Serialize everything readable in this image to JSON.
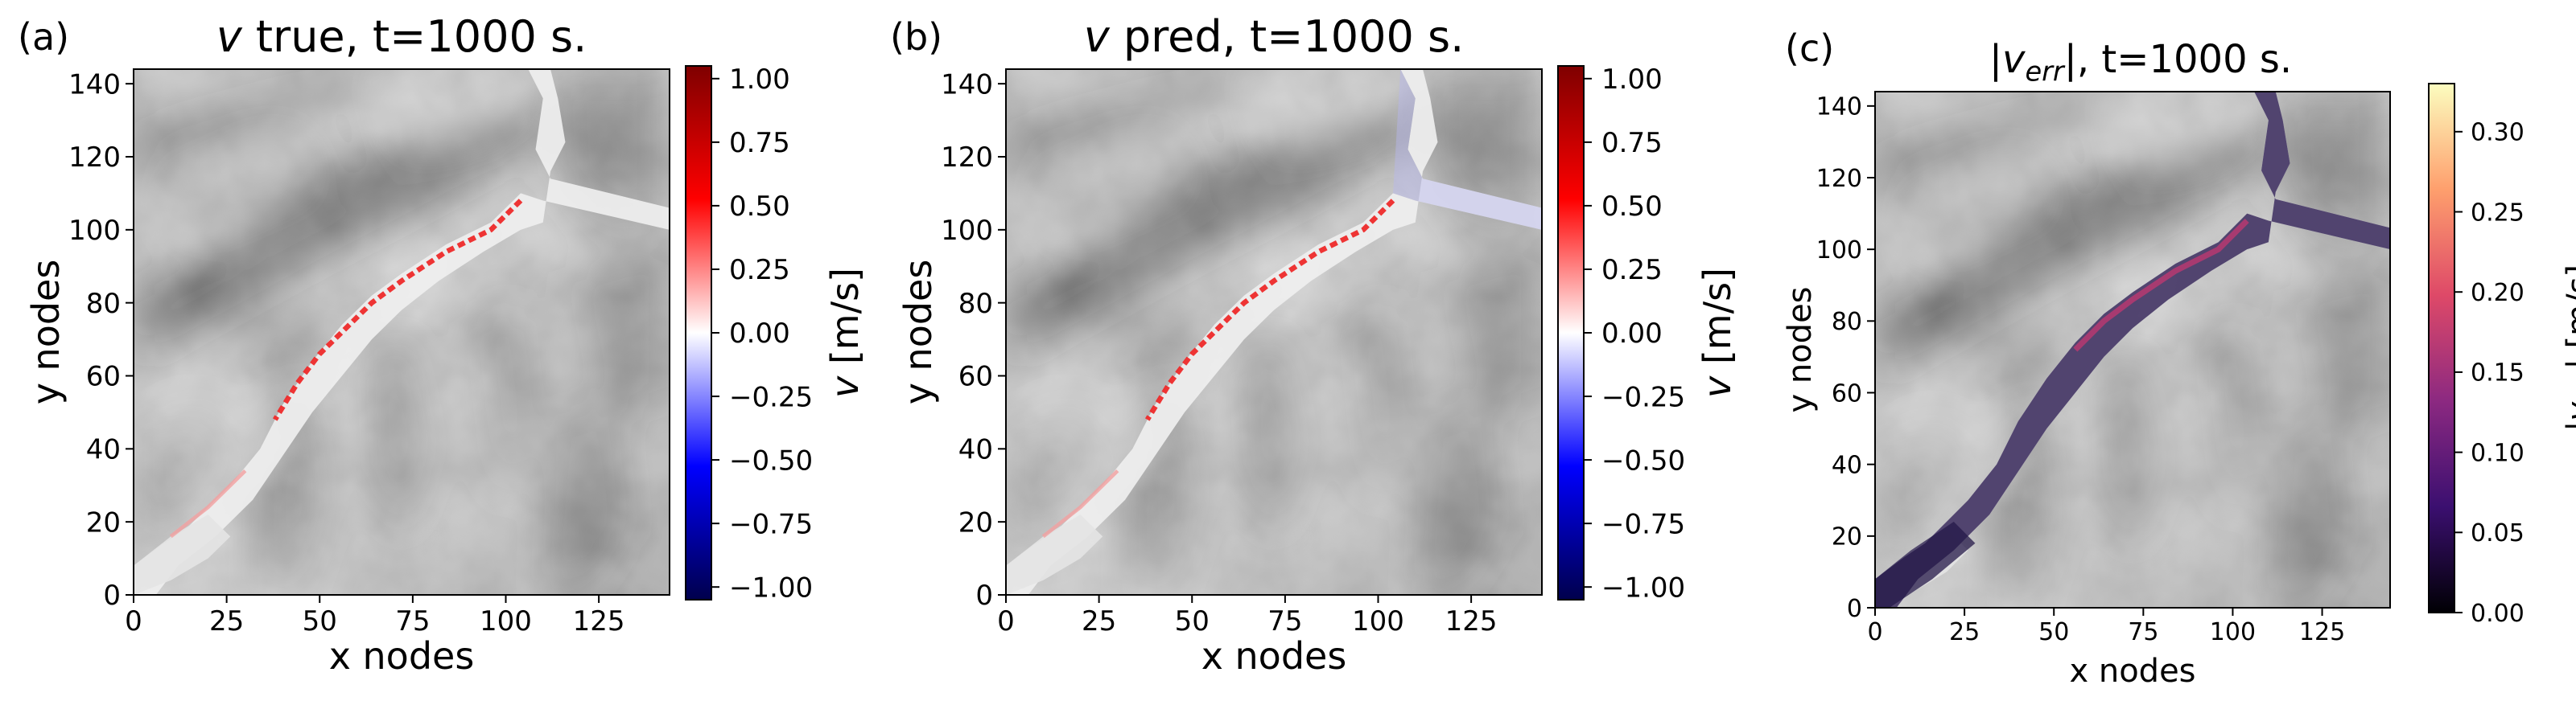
{
  "chart_data": [
    {
      "type": "heatmap",
      "panel_label": "(a)",
      "title_var": "v",
      "title_rest": " true, t=1000 s.",
      "xlabel": "x nodes",
      "ylabel": "y nodes",
      "xlim": [
        0,
        144
      ],
      "ylim": [
        0,
        144
      ],
      "xticks": [
        0,
        25,
        50,
        75,
        100,
        125
      ],
      "yticks": [
        0,
        20,
        40,
        60,
        80,
        100,
        120,
        140
      ],
      "colorbar": {
        "label": "v [m/s]",
        "colormap": "seismic",
        "range": [
          -1.05,
          1.05
        ],
        "ticks": [
          1.0,
          0.75,
          0.5,
          0.25,
          0.0,
          -0.25,
          -0.5,
          -0.75,
          -1.0
        ],
        "tick_labels": [
          "1.00",
          "0.75",
          "0.50",
          "0.25",
          "0.00",
          "−0.25",
          "−0.50",
          "−0.75",
          "−1.00"
        ]
      }
    },
    {
      "type": "heatmap",
      "panel_label": "(b)",
      "title_var": "v",
      "title_rest": " pred, t=1000 s.",
      "xlabel": "x nodes",
      "ylabel": "y nodes",
      "xlim": [
        0,
        144
      ],
      "ylim": [
        0,
        144
      ],
      "xticks": [
        0,
        25,
        50,
        75,
        100,
        125
      ],
      "yticks": [
        0,
        20,
        40,
        60,
        80,
        100,
        120,
        140
      ],
      "colorbar": {
        "label": "v [m/s]",
        "colormap": "seismic",
        "range": [
          -1.05,
          1.05
        ],
        "ticks": [
          1.0,
          0.75,
          0.5,
          0.25,
          0.0,
          -0.25,
          -0.5,
          -0.75,
          -1.0
        ],
        "tick_labels": [
          "1.00",
          "0.75",
          "0.50",
          "0.25",
          "0.00",
          "−0.25",
          "−0.50",
          "−0.75",
          "−1.00"
        ]
      }
    },
    {
      "type": "heatmap",
      "panel_label": "(c)",
      "title_var": "|v_err|",
      "title_rest": ", t=1000 s.",
      "xlabel": "x nodes",
      "ylabel": "y nodes",
      "xlim": [
        0,
        144
      ],
      "ylim": [
        0,
        144
      ],
      "xticks": [
        0,
        25,
        50,
        75,
        100,
        125
      ],
      "yticks": [
        0,
        20,
        40,
        60,
        80,
        100,
        120,
        140
      ],
      "colorbar": {
        "label": "|v_err| [m/s]",
        "colormap": "magma",
        "range": [
          0,
          0.33
        ],
        "ticks": [
          0.3,
          0.25,
          0.2,
          0.15,
          0.1,
          0.05,
          0.0
        ],
        "tick_labels": [
          "0.30",
          "0.25",
          "0.20",
          "0.15",
          "0.10",
          "0.05",
          "0.00"
        ]
      }
    }
  ],
  "colors": {
    "seismic": [
      "#00004c",
      "#0000ff",
      "#ffffff",
      "#ff0000",
      "#7f0000"
    ],
    "magma": [
      "#000004",
      "#3b0f70",
      "#8c2981",
      "#de4968",
      "#fe9f6d",
      "#fcfdbf"
    ],
    "flow_band_a": "#f0f0f0",
    "flow_band_b": "#eeeef6",
    "flow_band_c": "#2a1a50",
    "seismic_red": "#ee2a2a",
    "seismic_blue": "#b8b8f0",
    "magma_hot": "#b03a70"
  }
}
